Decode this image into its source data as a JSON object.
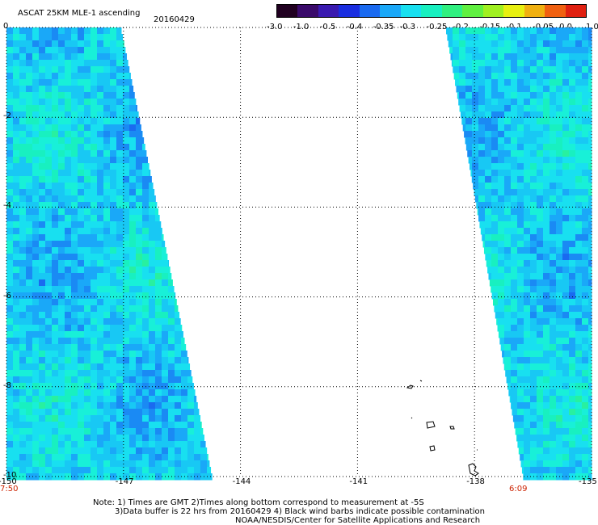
{
  "header": {
    "title": "ASCAT 25KM MLE-1 ascending",
    "date": "20160429"
  },
  "colorbar": {
    "labels": [
      "-3.0",
      "-1.0",
      "-0.5",
      "-0.4",
      "-0.35",
      "-0.3",
      "-0.25",
      "-0.2",
      "-0.15",
      "-0.1",
      "-0.05",
      "0.0",
      "1.0"
    ],
    "colors": [
      "#200020",
      "#3a0a6a",
      "#3a1ab0",
      "#1a2ee0",
      "#1a6af0",
      "#1aa8f8",
      "#18e0f0",
      "#18f0c0",
      "#30f080",
      "#60f040",
      "#a0f020",
      "#e8f010",
      "#f0b010",
      "#f06010",
      "#e02010"
    ]
  },
  "axes": {
    "y_labels": [
      "0",
      "-2",
      "-4",
      "-6",
      "-8",
      "-10"
    ],
    "x_labels": [
      "-150",
      "-147",
      "-144",
      "-141",
      "-138",
      "-135"
    ]
  },
  "swath_times": {
    "left": "7:50",
    "right": "6:09"
  },
  "footer": {
    "line1": "Note: 1) Times are GMT 2)Times along bottom correspond to measurement at -5S",
    "line2": "3)Data buffer is 22 hrs from 20160429 4) Black wind barbs indicate possible contamination",
    "line3": "NOAA/NESDIS/Center for Satellite Applications and Research"
  }
}
